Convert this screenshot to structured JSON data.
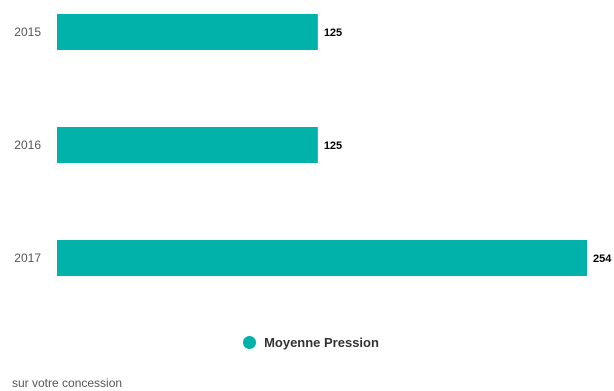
{
  "chart_data": {
    "type": "bar",
    "orientation": "horizontal",
    "categories": [
      "2015",
      "2016",
      "2017"
    ],
    "series": [
      {
        "name": "Moyenne Pression",
        "color": "#00B2A9",
        "values": [
          125,
          125,
          254
        ]
      }
    ],
    "data_labels": [
      "125",
      "125",
      "254"
    ],
    "xlim": [
      0,
      254
    ],
    "grid": false,
    "legend": "bottom-center"
  },
  "legend_items": [
    {
      "label": "Moyenne Pression",
      "color": "#00B2A9"
    }
  ],
  "footer_note": "sur votre concession"
}
